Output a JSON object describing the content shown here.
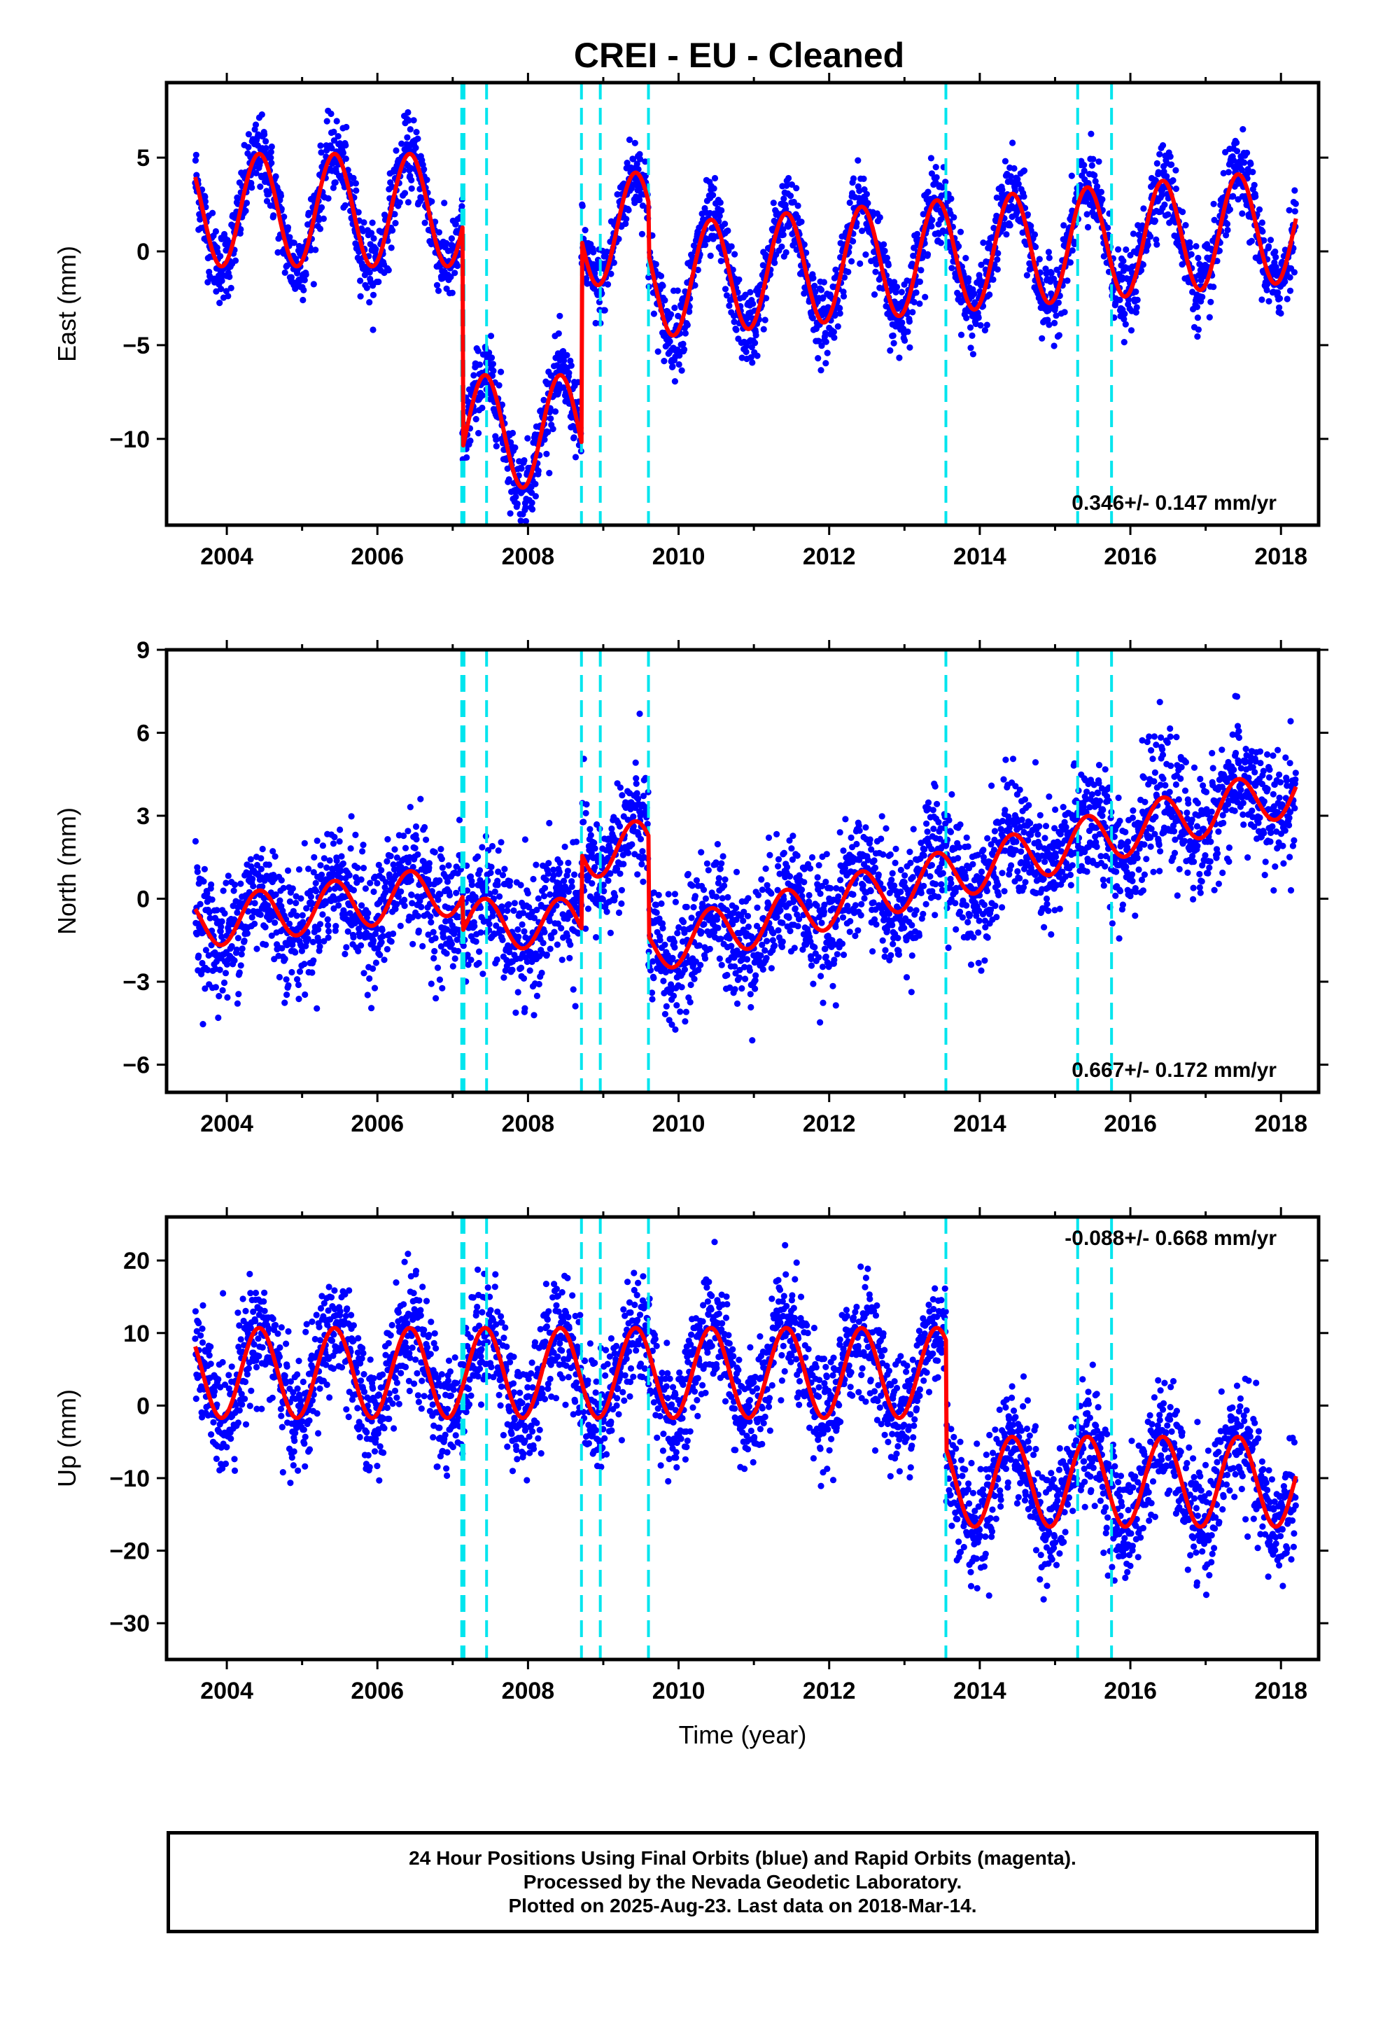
{
  "title": "CREI  - EU - Cleaned",
  "colors": {
    "final_orbits": "#0000ff",
    "model": "#ff0000",
    "break_lines": "#00e5ee",
    "frame": "#000000"
  },
  "chart_data": [
    {
      "type": "scatter",
      "component": "east",
      "ylabel": "East (mm)",
      "xlabel": "",
      "xlim": [
        2003.2,
        2018.5
      ],
      "ylim": [
        -14.6,
        9
      ],
      "xticks": [
        "2004",
        "2006",
        "2008",
        "2010",
        "2012",
        "2014",
        "2016",
        "2018"
      ],
      "yticks": [
        "5",
        "0",
        "−5",
        "−10"
      ],
      "ytick_values": [
        5,
        0,
        -5,
        -10
      ],
      "rate_text": "0.346+/- 0.147 mm/yr",
      "rate_position": "bottom-right",
      "model_segments": [
        {
          "start": 2003.58,
          "end": 2007.13,
          "offset": 2.2,
          "amplitude": 3.0
        },
        {
          "start": 2007.13,
          "end": 2008.71,
          "offset": -9.6,
          "amplitude": 3.0
        },
        {
          "start": 2008.71,
          "end": 2009.6,
          "offset": 1.2,
          "amplitude": 3.0
        },
        {
          "start": 2009.6,
          "end": 2018.2,
          "offset": -1.6,
          "amplitude": 3.0,
          "trend": 0.346
        }
      ],
      "scatter_sd": 1.0
    },
    {
      "type": "scatter",
      "component": "north",
      "ylabel": "North (mm)",
      "xlabel": "",
      "xlim": [
        2003.2,
        2018.5
      ],
      "ylim": [
        -7,
        9
      ],
      "xticks": [
        "2004",
        "2006",
        "2008",
        "2010",
        "2012",
        "2014",
        "2016",
        "2018"
      ],
      "yticks": [
        "9",
        "6",
        "3",
        "0",
        "−3",
        "−6"
      ],
      "ytick_values": [
        9,
        6,
        3,
        0,
        -3,
        -6
      ],
      "rate_text": "0.667+/- 0.172 mm/yr",
      "rate_position": "bottom-right",
      "model_segments": [
        {
          "start": 2003.58,
          "end": 2007.13,
          "offset": -0.9,
          "amplitude": 0.9,
          "trend": 0.35
        },
        {
          "start": 2007.13,
          "end": 2008.71,
          "offset": -0.9,
          "amplitude": 0.9
        },
        {
          "start": 2008.71,
          "end": 2009.6,
          "offset": 1.8,
          "amplitude": 1.0
        },
        {
          "start": 2009.6,
          "end": 2018.2,
          "offset": -1.8,
          "amplitude": 0.9,
          "trend": 0.667
        }
      ],
      "scatter_sd": 1.1
    },
    {
      "type": "scatter",
      "component": "up",
      "ylabel": "Up (mm)",
      "xlabel": "Time (year)",
      "xlim": [
        2003.2,
        2018.5
      ],
      "ylim": [
        -35,
        26
      ],
      "xticks": [
        "2004",
        "2006",
        "2008",
        "2010",
        "2012",
        "2014",
        "2016",
        "2018"
      ],
      "yticks": [
        "20",
        "10",
        "0",
        "−10",
        "−20",
        "−30"
      ],
      "ytick_values": [
        20,
        10,
        0,
        -10,
        -20,
        -30
      ],
      "rate_text": "-0.088+/- 0.668 mm/yr",
      "rate_position": "top-right",
      "model_segments": [
        {
          "start": 2003.58,
          "end": 2013.55,
          "offset": 4.5,
          "amplitude": 6.2
        },
        {
          "start": 2013.55,
          "end": 2018.2,
          "offset": -10.5,
          "amplitude": 6.2
        }
      ],
      "scatter_sd": 4.0
    }
  ],
  "break_lines": [
    2007.12,
    2007.15,
    2007.45,
    2008.71,
    2008.96,
    2009.6,
    2013.55,
    2015.3,
    2015.75
  ],
  "footer": {
    "line1": "24 Hour Positions Using Final Orbits (blue) and Rapid Orbits (magenta).",
    "line2": "Processed by the Nevada Geodetic Laboratory.",
    "line3": "Plotted on 2025-Aug-23. Last data on 2018-Mar-14."
  }
}
